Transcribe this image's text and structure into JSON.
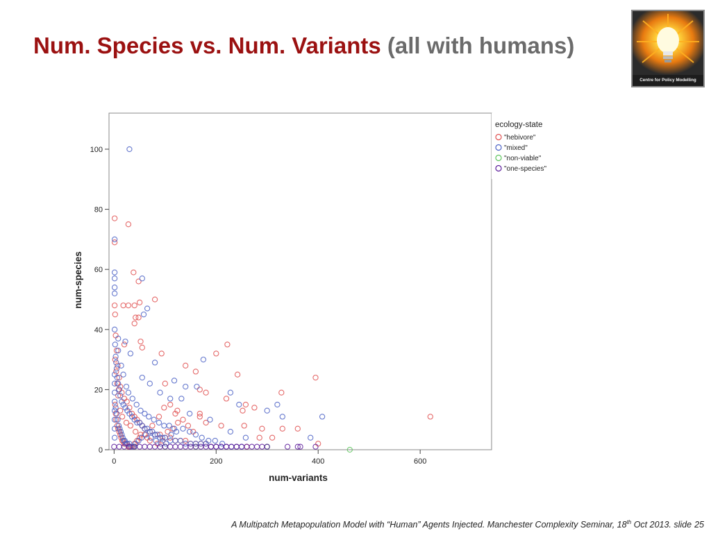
{
  "slide": {
    "title_main": "Num. Species vs. Num. Variants",
    "title_sub": " (all with humans)",
    "footer": {
      "text_before": "A Multipatch Metapopulation Model with “Human” Agents Injected. Manchester Complexity Seminar, 18",
      "superscript": "th",
      "text_after": " Oct 2013.  slide",
      "slide_number": "25"
    },
    "logo": {
      "text": "Centre for Policy Modelling",
      "icon": "lightbulb-icon"
    }
  },
  "chart_data": {
    "type": "scatter",
    "title": "",
    "xlabel": "num-variants",
    "ylabel": "num-species",
    "xlim": [
      -10,
      740
    ],
    "ylim": [
      0,
      112
    ],
    "xticks": [
      0,
      200,
      400,
      600
    ],
    "yticks": [
      0,
      20,
      40,
      60,
      80,
      100
    ],
    "grid": false,
    "marker": "open-circle",
    "legend": {
      "title": "ecology-state",
      "placement": "right"
    },
    "series": [
      {
        "name": "\"hebivore\"",
        "color": "#e05050",
        "points": [
          [
            1,
            77
          ],
          [
            28,
            75
          ],
          [
            1,
            69
          ],
          [
            38,
            59
          ],
          [
            48,
            56
          ],
          [
            80,
            50
          ],
          [
            1,
            48
          ],
          [
            18,
            48
          ],
          [
            28,
            48
          ],
          [
            40,
            48
          ],
          [
            50,
            49
          ],
          [
            42,
            44
          ],
          [
            48,
            44
          ],
          [
            40,
            42
          ],
          [
            2,
            45
          ],
          [
            52,
            36
          ],
          [
            20,
            35
          ],
          [
            55,
            34
          ],
          [
            93,
            32
          ],
          [
            200,
            32
          ],
          [
            222,
            35
          ],
          [
            242,
            25
          ],
          [
            395,
            24
          ],
          [
            160,
            26
          ],
          [
            328,
            19
          ],
          [
            168,
            20
          ],
          [
            180,
            19
          ],
          [
            220,
            17
          ],
          [
            100,
            22
          ],
          [
            140,
            28
          ],
          [
            258,
            15
          ],
          [
            252,
            13
          ],
          [
            275,
            14
          ],
          [
            168,
            12
          ],
          [
            120,
            12
          ],
          [
            168,
            11
          ],
          [
            180,
            9
          ],
          [
            210,
            8
          ],
          [
            255,
            8
          ],
          [
            290,
            7
          ],
          [
            330,
            7
          ],
          [
            360,
            7
          ],
          [
            285,
            4
          ],
          [
            310,
            4
          ],
          [
            400,
            2
          ],
          [
            620,
            11
          ],
          [
            3,
            38
          ],
          [
            5,
            33
          ],
          [
            7,
            28
          ],
          [
            10,
            24
          ],
          [
            12,
            21
          ],
          [
            15,
            19
          ],
          [
            20,
            17
          ],
          [
            25,
            16
          ],
          [
            30,
            14
          ],
          [
            35,
            12
          ],
          [
            40,
            11
          ],
          [
            45,
            10
          ],
          [
            50,
            9
          ],
          [
            55,
            8
          ],
          [
            60,
            7
          ],
          [
            70,
            6
          ],
          [
            80,
            5
          ],
          [
            90,
            5
          ],
          [
            100,
            4
          ],
          [
            110,
            4
          ],
          [
            120,
            3
          ],
          [
            130,
            3
          ],
          [
            140,
            3
          ],
          [
            150,
            2
          ],
          [
            160,
            2
          ],
          [
            170,
            2
          ],
          [
            180,
            2
          ],
          [
            190,
            1
          ],
          [
            200,
            1
          ],
          [
            220,
            1
          ],
          [
            240,
            1
          ],
          [
            260,
            1
          ],
          [
            2,
            15
          ],
          [
            3,
            12
          ],
          [
            4,
            10
          ],
          [
            6,
            8
          ],
          [
            8,
            7
          ],
          [
            10,
            6
          ],
          [
            12,
            5
          ],
          [
            14,
            4
          ],
          [
            16,
            3
          ],
          [
            18,
            3
          ],
          [
            20,
            2
          ],
          [
            22,
            2
          ],
          [
            25,
            2
          ],
          [
            28,
            1
          ],
          [
            32,
            1
          ],
          [
            36,
            1
          ],
          [
            40,
            2
          ],
          [
            45,
            3
          ],
          [
            50,
            4
          ],
          [
            60,
            5
          ],
          [
            70,
            3
          ],
          [
            85,
            2
          ],
          [
            95,
            3
          ],
          [
            105,
            6
          ],
          [
            115,
            7
          ],
          [
            125,
            9
          ],
          [
            135,
            10
          ],
          [
            145,
            8
          ],
          [
            155,
            6
          ],
          [
            8,
            18
          ],
          [
            12,
            13
          ],
          [
            16,
            11
          ],
          [
            24,
            9
          ],
          [
            32,
            8
          ],
          [
            42,
            6
          ],
          [
            52,
            5
          ],
          [
            65,
            4
          ],
          [
            75,
            8
          ],
          [
            88,
            11
          ],
          [
            98,
            14
          ],
          [
            110,
            15
          ],
          [
            124,
            13
          ],
          [
            2,
            30
          ],
          [
            4,
            26
          ],
          [
            6,
            22
          ],
          [
            9,
            20
          ]
        ]
      },
      {
        "name": "\"mixed\"",
        "color": "#4b62c6",
        "points": [
          [
            30,
            100
          ],
          [
            1,
            70
          ],
          [
            1,
            59
          ],
          [
            1,
            57
          ],
          [
            55,
            57
          ],
          [
            1,
            54
          ],
          [
            1,
            52
          ],
          [
            65,
            47
          ],
          [
            58,
            45
          ],
          [
            1,
            40
          ],
          [
            8,
            37
          ],
          [
            22,
            36
          ],
          [
            32,
            32
          ],
          [
            80,
            29
          ],
          [
            118,
            23
          ],
          [
            140,
            21
          ],
          [
            162,
            21
          ],
          [
            175,
            30
          ],
          [
            228,
            19
          ],
          [
            245,
            15
          ],
          [
            300,
            13
          ],
          [
            320,
            15
          ],
          [
            330,
            11
          ],
          [
            408,
            11
          ],
          [
            385,
            4
          ],
          [
            300,
            1
          ],
          [
            258,
            4
          ],
          [
            228,
            6
          ],
          [
            188,
            10
          ],
          [
            148,
            12
          ],
          [
            132,
            17
          ],
          [
            110,
            17
          ],
          [
            90,
            19
          ],
          [
            70,
            22
          ],
          [
            55,
            24
          ],
          [
            2,
            35
          ],
          [
            3,
            31
          ],
          [
            4,
            29
          ],
          [
            5,
            27
          ],
          [
            6,
            24
          ],
          [
            8,
            22
          ],
          [
            10,
            20
          ],
          [
            12,
            18
          ],
          [
            15,
            16
          ],
          [
            18,
            15
          ],
          [
            22,
            14
          ],
          [
            26,
            13
          ],
          [
            30,
            12
          ],
          [
            35,
            11
          ],
          [
            40,
            10
          ],
          [
            45,
            9
          ],
          [
            50,
            9
          ],
          [
            55,
            8
          ],
          [
            60,
            7
          ],
          [
            65,
            7
          ],
          [
            70,
            6
          ],
          [
            75,
            6
          ],
          [
            80,
            5
          ],
          [
            85,
            5
          ],
          [
            90,
            4
          ],
          [
            95,
            4
          ],
          [
            100,
            4
          ],
          [
            110,
            3
          ],
          [
            120,
            3
          ],
          [
            130,
            3
          ],
          [
            140,
            2
          ],
          [
            150,
            2
          ],
          [
            160,
            2
          ],
          [
            170,
            2
          ],
          [
            180,
            2
          ],
          [
            190,
            1
          ],
          [
            200,
            1
          ],
          [
            210,
            1
          ],
          [
            220,
            1
          ],
          [
            230,
            1
          ],
          [
            240,
            1
          ],
          [
            250,
            1
          ],
          [
            1,
            25
          ],
          [
            1,
            22
          ],
          [
            1,
            19
          ],
          [
            1,
            16
          ],
          [
            1,
            13
          ],
          [
            1,
            10
          ],
          [
            1,
            7
          ],
          [
            1,
            4
          ],
          [
            3,
            14
          ],
          [
            5,
            12
          ],
          [
            7,
            10
          ],
          [
            9,
            8
          ],
          [
            11,
            7
          ],
          [
            13,
            6
          ],
          [
            15,
            5
          ],
          [
            17,
            4
          ],
          [
            19,
            3
          ],
          [
            21,
            3
          ],
          [
            23,
            2
          ],
          [
            26,
            2
          ],
          [
            30,
            2
          ],
          [
            34,
            1
          ],
          [
            38,
            1
          ],
          [
            42,
            2
          ],
          [
            48,
            3
          ],
          [
            54,
            4
          ],
          [
            62,
            5
          ],
          [
            72,
            4
          ],
          [
            82,
            3
          ],
          [
            92,
            2
          ],
          [
            102,
            2
          ],
          [
            112,
            5
          ],
          [
            122,
            6
          ],
          [
            135,
            7
          ],
          [
            148,
            6
          ],
          [
            160,
            5
          ],
          [
            172,
            4
          ],
          [
            185,
            3
          ],
          [
            198,
            3
          ],
          [
            212,
            2
          ],
          [
            8,
            33
          ],
          [
            14,
            28
          ],
          [
            18,
            25
          ],
          [
            24,
            21
          ],
          [
            28,
            19
          ],
          [
            36,
            17
          ],
          [
            44,
            15
          ],
          [
            52,
            13
          ],
          [
            60,
            12
          ],
          [
            68,
            11
          ],
          [
            78,
            10
          ],
          [
            88,
            9
          ],
          [
            98,
            8
          ],
          [
            108,
            8
          ],
          [
            118,
            7
          ]
        ]
      },
      {
        "name": "\"non-viable\"",
        "color": "#5cc45c",
        "points": [
          [
            300,
            1
          ],
          [
            462,
            0
          ],
          [
            160,
            1
          ],
          [
            40,
            1
          ],
          [
            100,
            1
          ]
        ]
      },
      {
        "name": "\"one-species\"",
        "color": "#5a1a9a",
        "points": [
          [
            0,
            1
          ],
          [
            10,
            1
          ],
          [
            20,
            1
          ],
          [
            30,
            1
          ],
          [
            40,
            1
          ],
          [
            50,
            1
          ],
          [
            60,
            1
          ],
          [
            70,
            1
          ],
          [
            80,
            1
          ],
          [
            90,
            1
          ],
          [
            100,
            1
          ],
          [
            110,
            1
          ],
          [
            120,
            1
          ],
          [
            130,
            1
          ],
          [
            140,
            1
          ],
          [
            150,
            1
          ],
          [
            160,
            1
          ],
          [
            170,
            1
          ],
          [
            180,
            1
          ],
          [
            190,
            1
          ],
          [
            200,
            1
          ],
          [
            210,
            1
          ],
          [
            220,
            1
          ],
          [
            230,
            1
          ],
          [
            240,
            1
          ],
          [
            250,
            1
          ],
          [
            260,
            1
          ],
          [
            270,
            1
          ],
          [
            280,
            1
          ],
          [
            290,
            1
          ],
          [
            300,
            1
          ],
          [
            340,
            1
          ],
          [
            360,
            1
          ],
          [
            365,
            1
          ],
          [
            395,
            1
          ]
        ]
      }
    ]
  }
}
